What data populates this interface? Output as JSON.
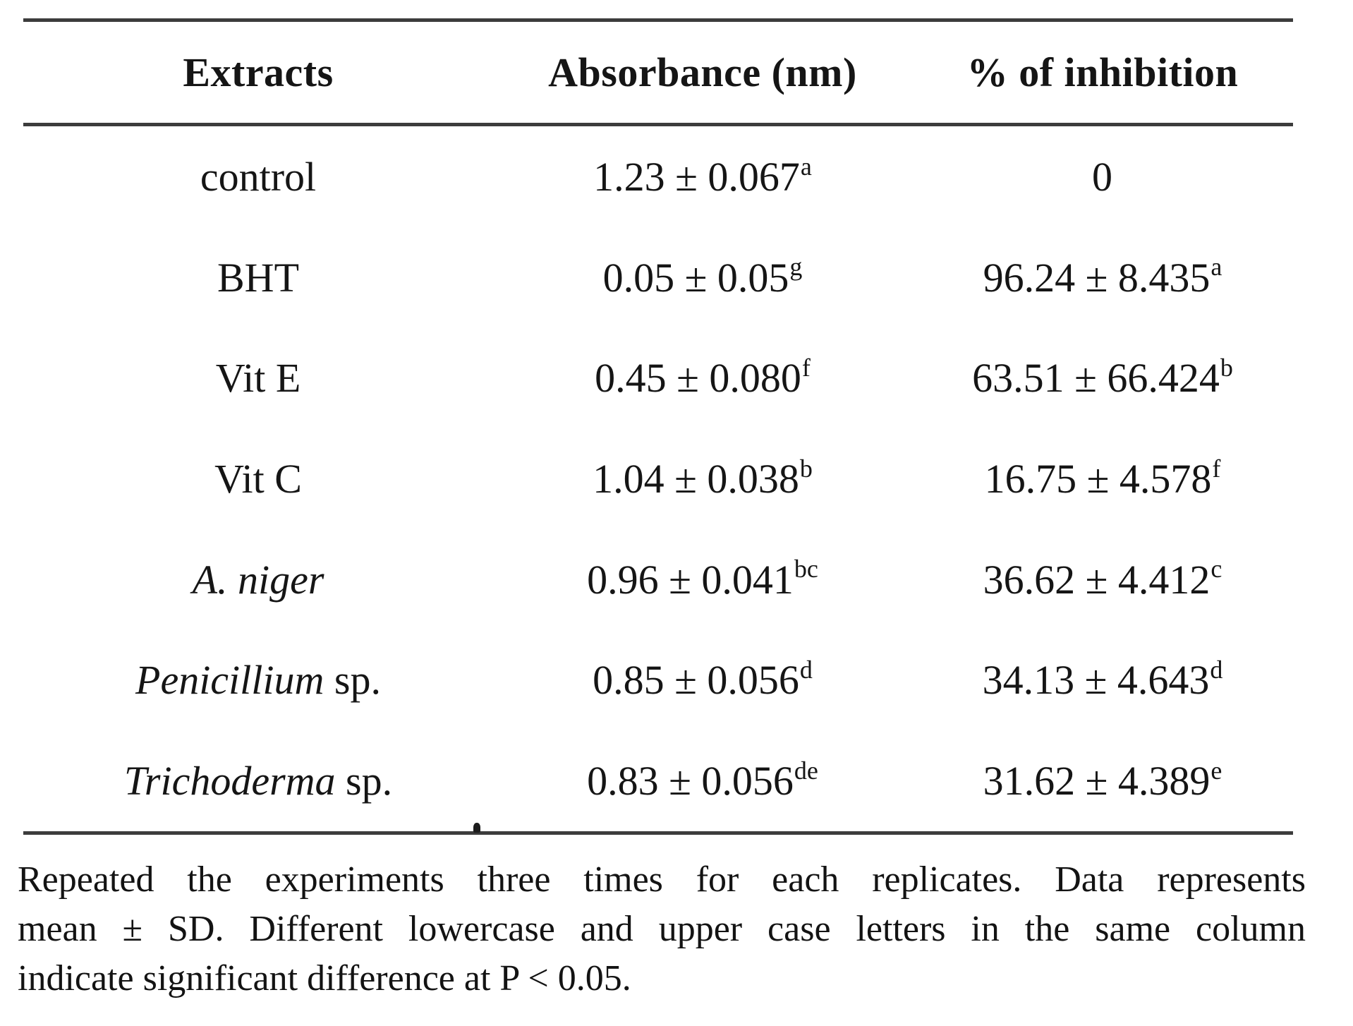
{
  "page": {
    "background_color": "#ffffff",
    "text_color": "#151515",
    "rule_color": "#3c3c3c"
  },
  "table": {
    "headers": [
      {
        "label": "Extracts"
      },
      {
        "label": "Absorbance (nm)"
      },
      {
        "label": "% of inhibition"
      }
    ],
    "rows": [
      {
        "label_italic": "",
        "label_regular": "control",
        "absorbance": "1.23 ± 0.067",
        "absorbance_sup": "a",
        "inhibition": "0",
        "inhibition_sup": ""
      },
      {
        "label_italic": "",
        "label_regular": "BHT",
        "absorbance": "0.05 ± 0.05",
        "absorbance_sup": "g",
        "inhibition": "96.24 ± 8.435",
        "inhibition_sup": "a"
      },
      {
        "label_italic": "",
        "label_regular": "Vit E",
        "absorbance": "0.45 ± 0.080",
        "absorbance_sup": "f",
        "inhibition": "63.51 ± 66.424",
        "inhibition_sup": "b"
      },
      {
        "label_italic": "",
        "label_regular": "Vit C",
        "absorbance": "1.04 ± 0.038",
        "absorbance_sup": "b",
        "inhibition": "16.75 ± 4.578",
        "inhibition_sup": "f"
      },
      {
        "label_italic": "A. niger",
        "label_regular": "",
        "absorbance": "0.96 ± 0.041",
        "absorbance_sup": "bc",
        "inhibition": "36.62 ± 4.412",
        "inhibition_sup": "c"
      },
      {
        "label_italic": "Penicillium",
        "label_regular": " sp.",
        "absorbance": "0.85 ± 0.056",
        "absorbance_sup": "d",
        "inhibition": "34.13 ± 4.643",
        "inhibition_sup": "d"
      },
      {
        "label_italic": "Trichoderma",
        "label_regular": " sp.",
        "absorbance": "0.83 ± 0.056",
        "absorbance_sup": "de",
        "inhibition": "31.62 ± 4.389",
        "inhibition_sup": "e"
      }
    ]
  },
  "footnote": {
    "lines": [
      "Repeated the experiments three times for each replicates. Data represents",
      "mean ± SD. Different lowercase and upper case letters in the same column",
      "indicate significant difference at P < 0.05."
    ],
    "full_text": "Repeated the experiments three times for each replicates. Data represents mean ± SD. Different lowercase and upper case letters in the same column indicate significant difference at P < 0.05."
  }
}
